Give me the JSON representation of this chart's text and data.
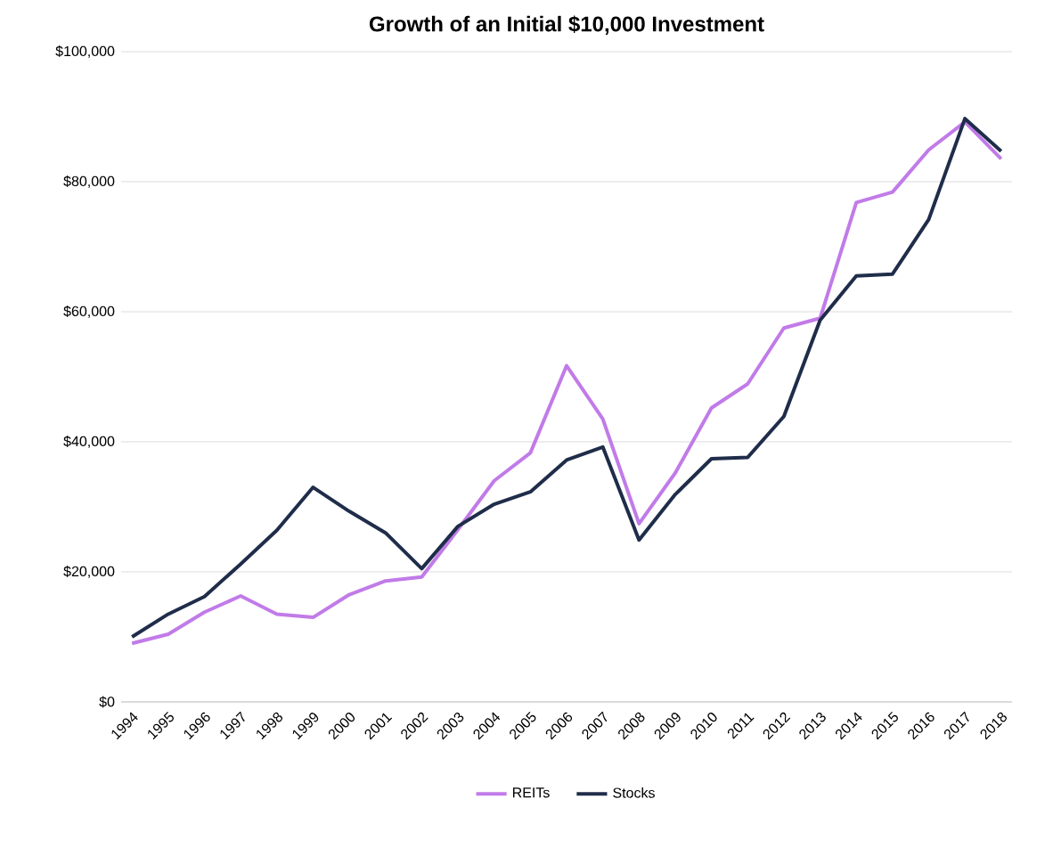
{
  "chart_data": {
    "type": "line",
    "title": "Growth of an Initial $10,000 Investment",
    "categories": [
      "1994",
      "1995",
      "1996",
      "1997",
      "1998",
      "1999",
      "2000",
      "2001",
      "2002",
      "2003",
      "2004",
      "2005",
      "2006",
      "2007",
      "2008",
      "2009",
      "2010",
      "2011",
      "2012",
      "2013",
      "2014",
      "2015",
      "2016",
      "2017",
      "2018"
    ],
    "series": [
      {
        "name": "REITs",
        "color": "#c17be8",
        "values": [
          9000,
          10400,
          13800,
          16300,
          13500,
          13000,
          16500,
          18600,
          19200,
          26500,
          34000,
          38300,
          51700,
          43500,
          27400,
          35200,
          45200,
          48900,
          57500,
          59000,
          76800,
          78400,
          84900,
          89200,
          83500
        ]
      },
      {
        "name": "Stocks",
        "color": "#1f2d4a",
        "values": [
          10000,
          13500,
          16200,
          21200,
          26400,
          33000,
          29300,
          26000,
          20500,
          27000,
          30400,
          32300,
          37200,
          39200,
          24900,
          31900,
          37400,
          37600,
          43900,
          58700,
          65500,
          65800,
          74200,
          89700,
          84700
        ]
      }
    ],
    "ylim": [
      0,
      100000
    ],
    "yticks": [
      {
        "value": 0,
        "label": "$0"
      },
      {
        "value": 20000,
        "label": "$20,000"
      },
      {
        "value": 40000,
        "label": "$40,000"
      },
      {
        "value": 60000,
        "label": "$60,000"
      },
      {
        "value": 80000,
        "label": "$80,000"
      },
      {
        "value": 100000,
        "label": "$100,000"
      }
    ],
    "grid": "y",
    "legend": "bottom",
    "marker": "none",
    "line_style": "solid"
  }
}
